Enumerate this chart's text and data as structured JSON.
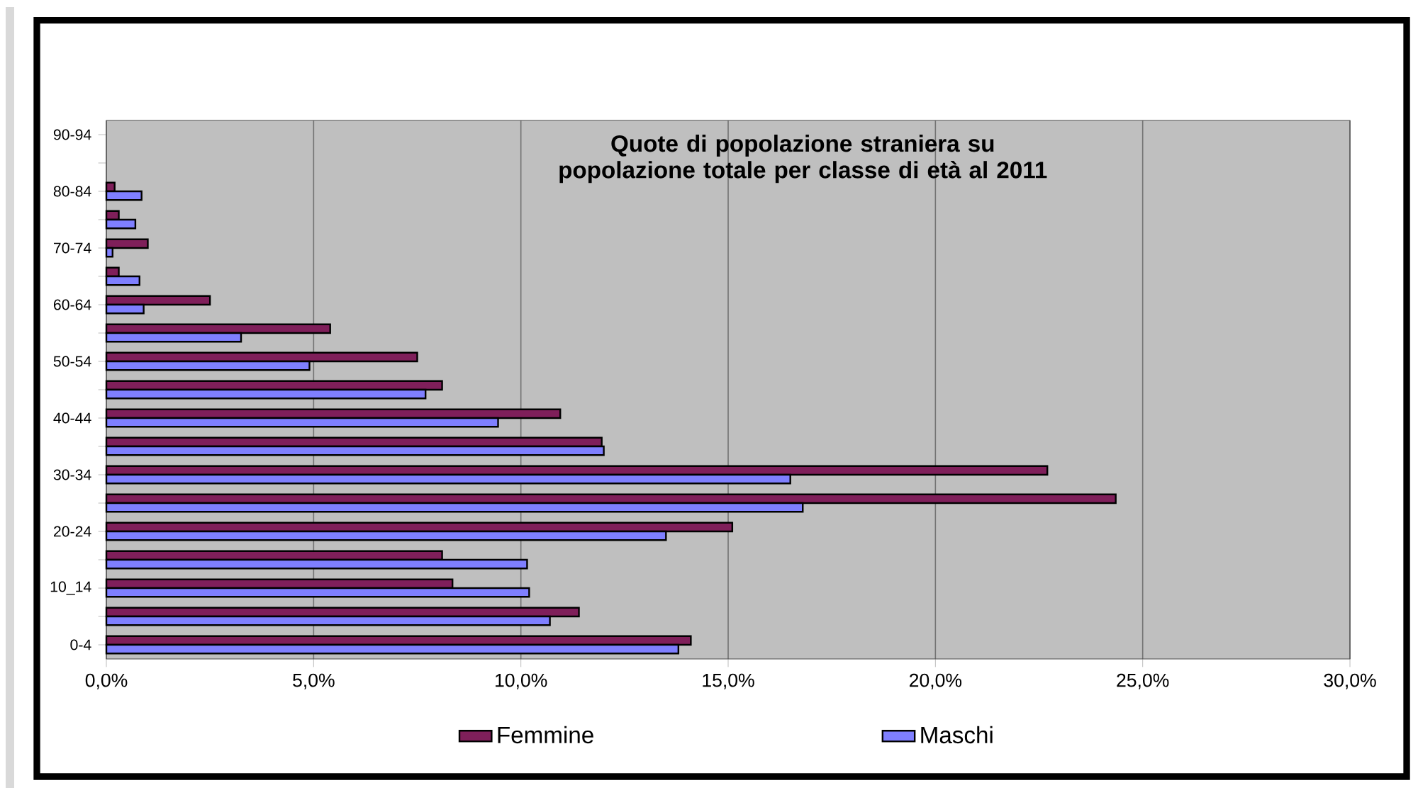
{
  "chart_data": {
    "type": "bar",
    "orientation": "horizontal",
    "title": "Quote di popolazione straniera su popolazione totale per classe di età al 2011",
    "categories": [
      "90-94",
      null,
      "80-84",
      null,
      "70-74",
      null,
      "60-64",
      null,
      "50-54",
      null,
      "40-44",
      null,
      "30-34",
      null,
      "20-24",
      null,
      "10_14",
      null,
      "0-4"
    ],
    "series": [
      {
        "name": "Femmine",
        "color": "#7f1f5a",
        "values": [
          null,
          null,
          0.2,
          0.3,
          1.0,
          0.3,
          2.5,
          5.4,
          7.5,
          8.1,
          10.95,
          11.95,
          22.7,
          24.35,
          15.1,
          8.1,
          8.35,
          11.4,
          14.1
        ]
      },
      {
        "name": "Maschi",
        "color": "#7f7fff",
        "values": [
          null,
          null,
          0.85,
          0.7,
          0.15,
          0.8,
          0.9,
          3.25,
          4.9,
          7.7,
          9.45,
          12.0,
          16.5,
          16.8,
          13.5,
          10.15,
          10.2,
          10.7,
          13.8
        ]
      }
    ],
    "xlim": [
      0,
      30
    ],
    "xticks": [
      {
        "value": 0,
        "label": "0,0%"
      },
      {
        "value": 5,
        "label": "5,0%"
      },
      {
        "value": 10,
        "label": "10,0%"
      },
      {
        "value": 15,
        "label": "15,0%"
      },
      {
        "value": 20,
        "label": "20,0%"
      },
      {
        "value": 25,
        "label": "25,0%"
      },
      {
        "value": 30,
        "label": "30,0%"
      }
    ],
    "grid": "x",
    "legend": "bottom"
  }
}
